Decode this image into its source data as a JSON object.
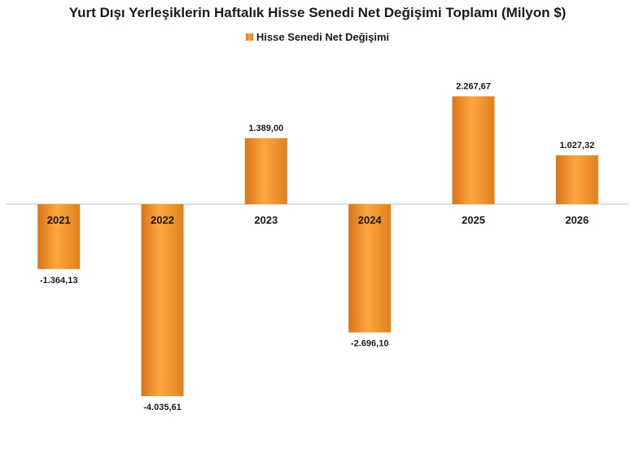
{
  "chart_data": {
    "type": "bar",
    "title": "Yurt Dışı Yerleşiklerin Haftalık Hisse Senedi Net Değişimi Toplamı (Milyon $)",
    "categories": [
      "2021",
      "2022",
      "2023",
      "2024",
      "2025",
      "2026"
    ],
    "series": [
      {
        "name": "Hisse Senedi Net Değişimi",
        "values": [
          -1364.13,
          -4035.61,
          1389.0,
          -2696.1,
          2267.67,
          1027.32
        ],
        "labels": [
          "-1.364,13",
          "-4.035,61",
          "1.389,00",
          "-2.696,10",
          "2.267,67",
          "1.027,32"
        ]
      }
    ],
    "xlabel": "",
    "ylabel": "",
    "ylim": [
      -4300,
      2400
    ],
    "grid": false,
    "legend_position": "top",
    "colors": {
      "bar_edge": "#d9731a",
      "bar_center": "#ffa640",
      "axis": "#bfbfbf",
      "text": "#1a1a1a"
    }
  }
}
